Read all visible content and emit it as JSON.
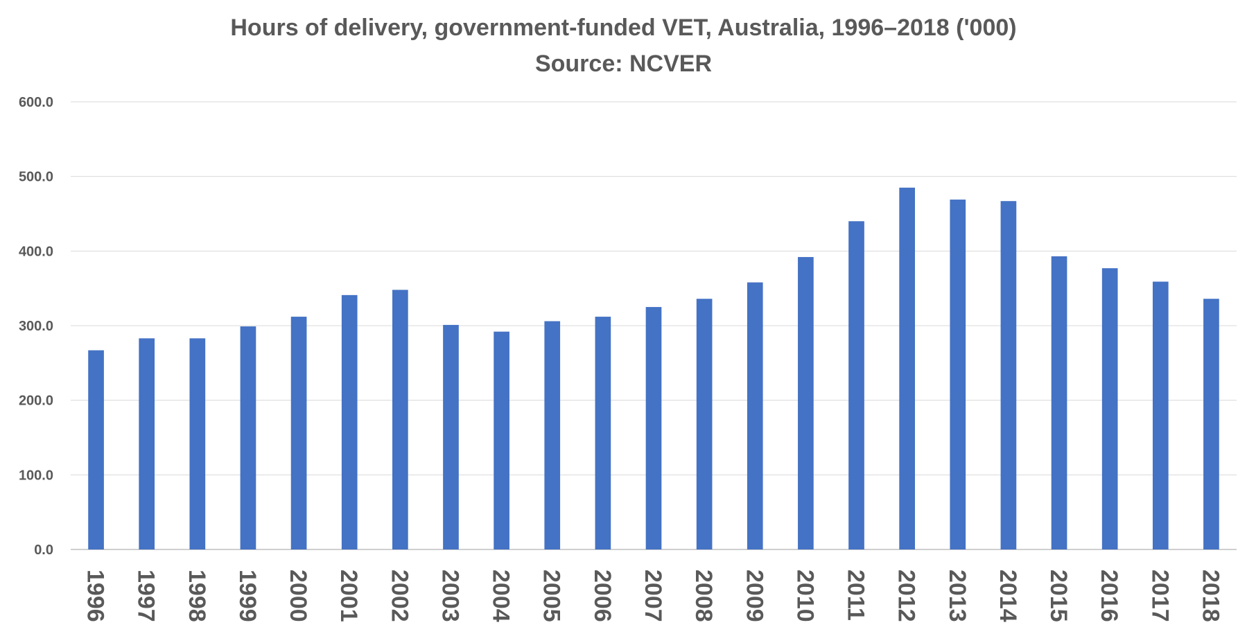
{
  "chart_data": {
    "type": "bar",
    "title": "Hours of delivery, government-funded VET, Australia, 1996–2018 ('000)",
    "subtitle": "Source: NCVER",
    "xlabel": "",
    "ylabel": "",
    "ylim": [
      0,
      600
    ],
    "yticks": [
      "0.0",
      "100.0",
      "200.0",
      "300.0",
      "400.0",
      "500.0",
      "600.0"
    ],
    "grid": true,
    "legend": "none",
    "categories": [
      "1996",
      "1997",
      "1998",
      "1999",
      "2000",
      "2001",
      "2002",
      "2003",
      "2004",
      "2005",
      "2006",
      "2007",
      "2008",
      "2009",
      "2010",
      "2011",
      "2012",
      "2013",
      "2014",
      "2015",
      "2016",
      "2017",
      "2018"
    ],
    "series": [
      {
        "values": [
          267,
          283,
          283,
          299,
          312,
          341,
          348,
          301,
          292,
          306,
          312,
          325,
          336,
          358,
          392,
          440,
          485,
          469,
          467,
          393,
          377,
          359,
          336
        ]
      }
    ]
  },
  "colors": {
    "bar": "#4472C4",
    "grid": "#D9D9D9",
    "axis": "#BFBFBF",
    "text": "#595959"
  }
}
